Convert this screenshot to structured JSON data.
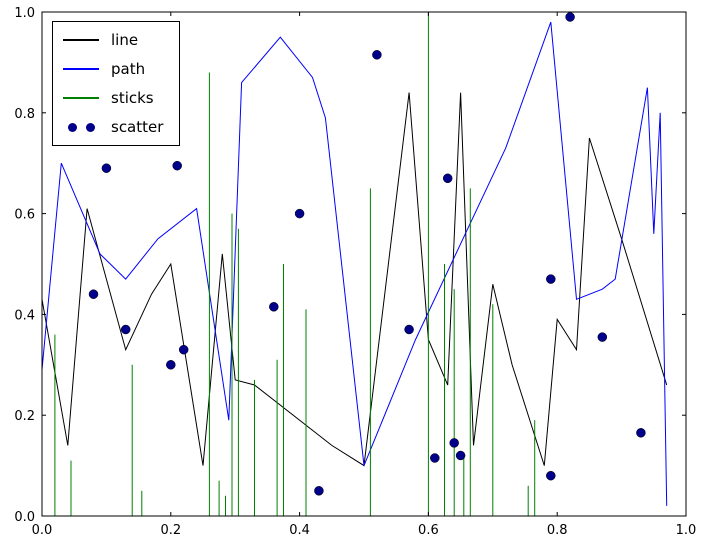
{
  "figure": {
    "background": "#ffffff",
    "frame_color": "#000000"
  },
  "axes": {
    "xlim": [
      0.0,
      1.0
    ],
    "ylim": [
      0.0,
      1.0
    ],
    "xtick_labels": [
      "0.0",
      "0.2",
      "0.4",
      "0.6",
      "0.8",
      "1.0"
    ],
    "ytick_labels": [
      "0.0",
      "0.2",
      "0.4",
      "0.6",
      "0.8",
      "1.0"
    ],
    "grid": false
  },
  "legend": {
    "position": "upper left",
    "entries": [
      {
        "label": "line",
        "color": "#000000",
        "sample": "line"
      },
      {
        "label": "path",
        "color": "#0000ff",
        "sample": "line"
      },
      {
        "label": "sticks",
        "color": "#008000",
        "sample": "line"
      },
      {
        "label": "scatter",
        "color": "#00008b",
        "sample": "markers"
      }
    ]
  },
  "chart_data": {
    "type": "line",
    "title": "",
    "xlabel": "",
    "ylabel": "",
    "xlim": [
      0.0,
      1.0
    ],
    "ylim": [
      0.0,
      1.0
    ],
    "xticks": [
      0.0,
      0.2,
      0.4,
      0.6,
      0.8,
      1.0
    ],
    "yticks": [
      0.0,
      0.2,
      0.4,
      0.6,
      0.8,
      1.0
    ],
    "legend_position": "upper left",
    "series": [
      {
        "name": "line",
        "type": "line",
        "color": "#000000",
        "x": [
          0.0,
          0.04,
          0.07,
          0.13,
          0.17,
          0.2,
          0.25,
          0.28,
          0.3,
          0.33,
          0.45,
          0.5,
          0.57,
          0.6,
          0.63,
          0.65,
          0.67,
          0.7,
          0.73,
          0.78,
          0.8,
          0.83,
          0.85,
          0.9,
          0.97
        ],
        "y": [
          0.43,
          0.14,
          0.61,
          0.33,
          0.44,
          0.5,
          0.1,
          0.52,
          0.27,
          0.26,
          0.14,
          0.1,
          0.84,
          0.35,
          0.26,
          0.84,
          0.14,
          0.46,
          0.3,
          0.1,
          0.39,
          0.33,
          0.75,
          0.55,
          0.26
        ]
      },
      {
        "name": "path",
        "type": "line",
        "color": "#0000ff",
        "x": [
          0.0,
          0.03,
          0.09,
          0.13,
          0.18,
          0.24,
          0.29,
          0.31,
          0.37,
          0.42,
          0.44,
          0.5,
          0.58,
          0.72,
          0.79,
          0.83,
          0.87,
          0.89,
          0.94,
          0.95,
          0.96,
          0.97
        ],
        "y": [
          0.29,
          0.7,
          0.52,
          0.47,
          0.55,
          0.61,
          0.19,
          0.86,
          0.95,
          0.87,
          0.79,
          0.1,
          0.35,
          0.73,
          0.98,
          0.43,
          0.45,
          0.47,
          0.85,
          0.56,
          0.8,
          0.02
        ]
      },
      {
        "name": "sticks",
        "type": "sticks",
        "color": "#008000",
        "x": [
          0.02,
          0.045,
          0.14,
          0.155,
          0.26,
          0.275,
          0.285,
          0.295,
          0.305,
          0.33,
          0.365,
          0.375,
          0.41,
          0.51,
          0.6,
          0.625,
          0.64,
          0.655,
          0.665,
          0.7,
          0.755,
          0.765
        ],
        "y": [
          0.36,
          0.11,
          0.3,
          0.05,
          0.88,
          0.07,
          0.04,
          0.6,
          0.57,
          0.27,
          0.31,
          0.5,
          0.41,
          0.65,
          1.0,
          0.5,
          0.45,
          0.12,
          0.65,
          0.42,
          0.06,
          0.19
        ]
      },
      {
        "name": "scatter",
        "type": "scatter",
        "color": "#00008b",
        "x": [
          0.08,
          0.1,
          0.13,
          0.2,
          0.21,
          0.22,
          0.36,
          0.4,
          0.43,
          0.52,
          0.57,
          0.61,
          0.63,
          0.64,
          0.65,
          0.79,
          0.79,
          0.82,
          0.87,
          0.93
        ],
        "y": [
          0.44,
          0.69,
          0.37,
          0.3,
          0.695,
          0.33,
          0.415,
          0.6,
          0.05,
          0.915,
          0.37,
          0.115,
          0.67,
          0.145,
          0.12,
          0.08,
          0.47,
          0.99,
          0.355,
          0.165
        ]
      }
    ]
  }
}
